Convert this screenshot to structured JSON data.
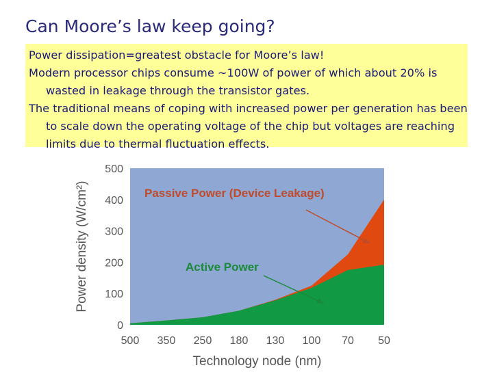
{
  "slide": {
    "title": "Can Moore’s law keep going?",
    "bullets": [
      "Power dissipation=greatest obstacle for Moore’s law!",
      "Modern processor chips consume ~100W of power of which about 20% is wasted in leakage through the transistor gates.",
      "The traditional means of coping with increased power per generation has been to scale down the operating voltage of the chip but voltages are reaching limits due to thermal fluctuation effects."
    ]
  },
  "colors": {
    "title": "#2a2a7a",
    "text_box_bg": "#ffff99",
    "plot_bg": "#8ea7d3",
    "passive": "#e04a10",
    "active": "#119944",
    "label_passive": "#c04a2a",
    "label_active": "#1a8a3a"
  },
  "chart_data": {
    "type": "area",
    "categories": [
      "500",
      "350",
      "250",
      "180",
      "130",
      "100",
      "70",
      "50"
    ],
    "xlabel": "Technology node (nm)",
    "ylabel": "Power density (W/cm²)",
    "ylim": [
      0,
      500
    ],
    "yticks": [
      0,
      100,
      200,
      300,
      400,
      500
    ],
    "grid": false,
    "series": [
      {
        "name": "Active Power",
        "values": [
          5,
          14,
          24,
          45,
          78,
          118,
          175,
          192
        ]
      },
      {
        "name": "Passive Power (Device Leakage)",
        "values": [
          5,
          14,
          24,
          45,
          80,
          125,
          225,
          400
        ]
      }
    ],
    "annotations": [
      {
        "text": "Passive Power (Device Leakage)",
        "points_to": "50"
      },
      {
        "text": "Active Power",
        "points_to": "100"
      }
    ]
  }
}
